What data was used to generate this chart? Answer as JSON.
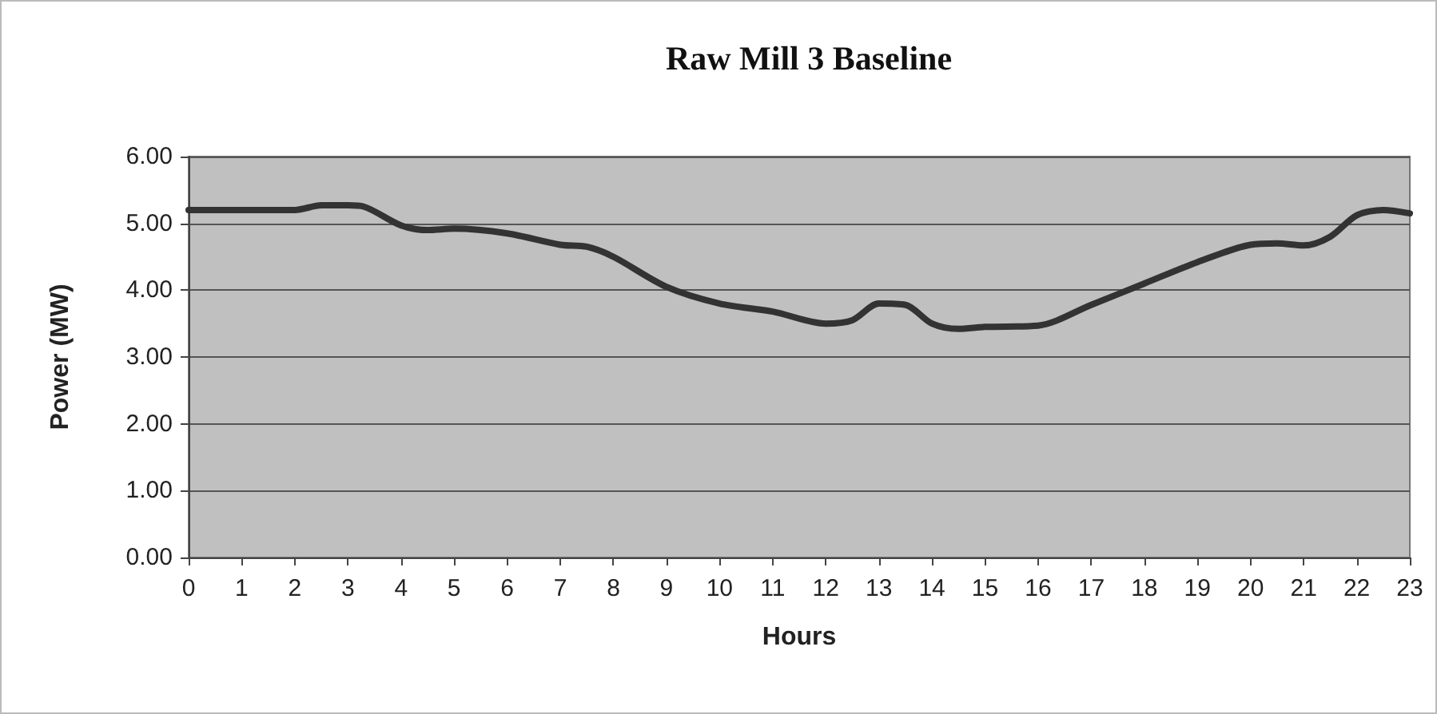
{
  "chart_data": {
    "type": "line",
    "title": "Raw Mill 3 Baseline",
    "xlabel": "Hours",
    "ylabel": "Power (MW)",
    "x": [
      0,
      1,
      2,
      2.5,
      3,
      3.3,
      4,
      4.5,
      5,
      6,
      7,
      7.5,
      8,
      9,
      10,
      11,
      12,
      12.5,
      13,
      13.5,
      14,
      14.5,
      15,
      16,
      17,
      18,
      19,
      20,
      20.5,
      21,
      21.5,
      22,
      22.5,
      23
    ],
    "series": [
      {
        "color": "#333333",
        "values": [
          5.2,
          5.2,
          5.2,
          5.27,
          5.27,
          5.25,
          4.97,
          4.9,
          4.92,
          4.85,
          4.68,
          4.65,
          4.5,
          4.05,
          3.8,
          3.68,
          3.5,
          3.55,
          3.8,
          3.78,
          3.5,
          3.42,
          3.45,
          3.47,
          3.78,
          4.1,
          4.42,
          4.68,
          4.7,
          4.67,
          4.8,
          5.12,
          5.2,
          5.15
        ]
      }
    ],
    "xlim": [
      0,
      23
    ],
    "xticks": [
      0,
      1,
      2,
      3,
      4,
      5,
      6,
      7,
      8,
      9,
      10,
      11,
      12,
      13,
      14,
      15,
      16,
      17,
      18,
      19,
      20,
      21,
      22,
      23
    ],
    "ylim": [
      0,
      6
    ],
    "yticks": [
      {
        "value": 0,
        "label": "0.00"
      },
      {
        "value": 1,
        "label": "1.00"
      },
      {
        "value": 2,
        "label": "2.00"
      },
      {
        "value": 3,
        "label": "3.00"
      },
      {
        "value": 4,
        "label": "4.00"
      },
      {
        "value": 5,
        "label": "5.00"
      },
      {
        "value": 6,
        "label": "6.00"
      }
    ],
    "grid": "y",
    "marker": "none",
    "line_style": "solid"
  }
}
